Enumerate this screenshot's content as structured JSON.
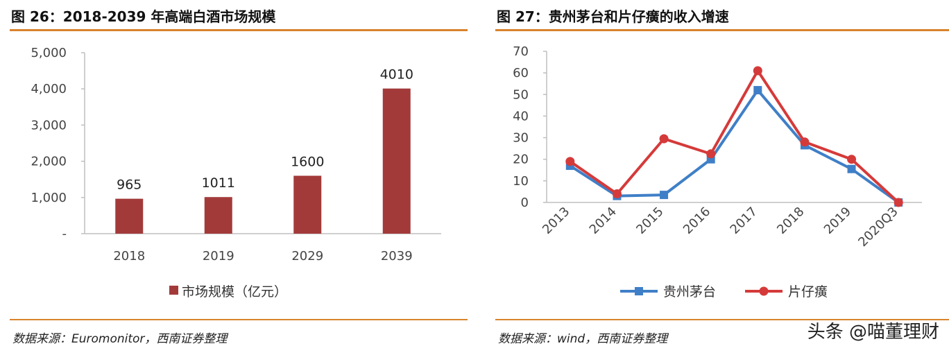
{
  "left": {
    "title": "图 26：2018-2039 年高端白酒市场规模",
    "source": "数据来源：Euromonitor，西南证券整理"
  },
  "right": {
    "title": "图 27：贵州茅台和片仔癀的收入增速",
    "source": "数据来源：wind，西南证券整理"
  },
  "watermark": "头条 @喵董理财",
  "chart_data": [
    {
      "type": "bar",
      "title": "",
      "categories": [
        "2018",
        "2019",
        "2029",
        "2039"
      ],
      "series": [
        {
          "name": "市场规模（亿元）",
          "values": [
            965,
            1011,
            1600,
            4010
          ],
          "color": "#a33a3a"
        }
      ],
      "data_labels": [
        "965",
        "1011",
        "1600",
        "4010"
      ],
      "ylim": [
        0,
        5000
      ],
      "yticks": [
        0,
        1000,
        2000,
        3000,
        4000,
        5000
      ],
      "ytick_labels": [
        "-",
        "1,000",
        "2,000",
        "3,000",
        "4,000",
        "5,000"
      ],
      "legend": "bottom",
      "grid": false
    },
    {
      "type": "line",
      "title": "",
      "categories": [
        "2013",
        "2014",
        "2015",
        "2016",
        "2017",
        "2018",
        "2019",
        "2020Q3"
      ],
      "series": [
        {
          "name": "贵州茅台",
          "values": [
            17,
            3,
            3.5,
            20,
            52,
            26.5,
            15.5,
            0
          ],
          "color": "#3f7fc7",
          "marker": "square"
        },
        {
          "name": "片仔癀",
          "values": [
            19,
            4,
            29.5,
            22.5,
            61,
            28,
            20,
            0
          ],
          "color": "#d53a3a",
          "marker": "circle"
        }
      ],
      "ylim": [
        0,
        70
      ],
      "yticks": [
        0,
        10,
        20,
        30,
        40,
        50,
        60,
        70
      ],
      "ytick_labels": [
        "0",
        "10",
        "20",
        "30",
        "40",
        "50",
        "60",
        "70"
      ],
      "legend": "bottom",
      "grid": false
    }
  ]
}
